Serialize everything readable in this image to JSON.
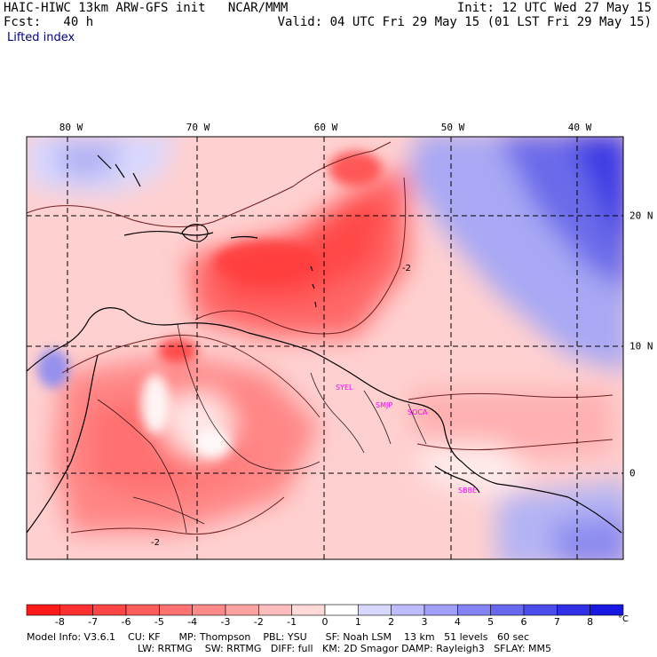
{
  "header": {
    "model_line": "HAIC-HIWC 13km ARW-GFS init   NCAR/MMM",
    "fcst_line": "Fcst:   40 h",
    "init_line": "Init: 12 UTC Wed 27 May 15",
    "valid_line": "Valid: 04 UTC Fri 29 May 15 (01 LST Fri 29 May 15)"
  },
  "field_name": "Lifted index",
  "map": {
    "longitude_labels": [
      "80 W",
      "70 W",
      "60 W",
      "50 W",
      "40 W"
    ],
    "latitude_labels": [
      "20 N",
      "10 N",
      "0"
    ],
    "contour_label": "-2",
    "stations": [
      "SYEL",
      "SMJP",
      "SOCA",
      "SBBE"
    ]
  },
  "colorbar": {
    "tick_labels": [
      "-8",
      "-7",
      "-6",
      "-5",
      "-4",
      "-3",
      "-2",
      "-1",
      "0",
      "1",
      "2",
      "3",
      "4",
      "5",
      "6",
      "7",
      "8"
    ],
    "unit": "°C",
    "colors": [
      "#ff1a1a",
      "#ff3030",
      "#ff4646",
      "#ff5c5c",
      "#ff7272",
      "#ff8a8a",
      "#ffa2a2",
      "#ffbcbc",
      "#ffd8d8",
      "#ffffff",
      "#d8d8ff",
      "#bcbcff",
      "#a0a0f8",
      "#8484f4",
      "#6868ee",
      "#4c4cea",
      "#3030e6",
      "#1818e2"
    ]
  },
  "footer": {
    "line1": "Model Info: V3.6.1    CU: KF      MP: Thompson    PBL: YSU      SF: Noah LSM    13 km   51 levels   60 sec",
    "line2": "LW: RRTMG    SW: RRTMG   DIFF: full   KM: 2D Smagor DAMP: Rayleigh3   SFLAY: MM5"
  }
}
